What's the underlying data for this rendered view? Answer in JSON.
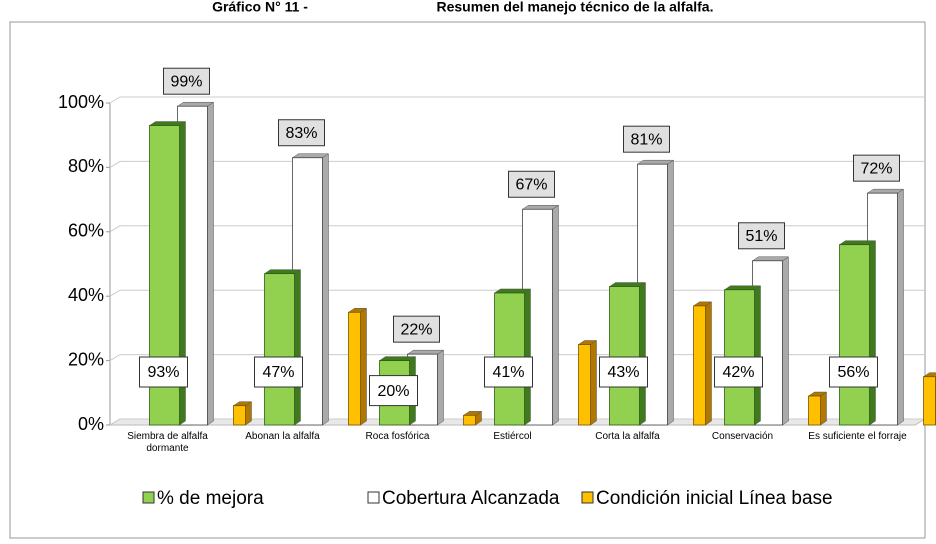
{
  "chart_data": {
    "type": "bar",
    "title": "Gráfico N° 11 -",
    "subtitle": "Resumen del manejo técnico de la alfalfa.",
    "categories": [
      "Siembra de alfalfa dormante",
      "Abonan la alfalfa",
      "Roca fosfórica",
      "Estiércol",
      "Corta la alfalfa",
      "Conservación",
      "Es suficiente el forraje"
    ],
    "series": [
      {
        "name": "% de mejora",
        "color": "#92d050",
        "values": [
          93,
          47,
          20,
          41,
          43,
          42,
          56
        ],
        "value_labels": [
          "93%",
          "47%",
          "20%",
          "41%",
          "43%",
          "42%",
          "56%"
        ]
      },
      {
        "name": "Cobertura Alcanzada",
        "color": "#ffffff",
        "values": [
          99,
          83,
          22,
          67,
          81,
          51,
          72
        ],
        "value_labels": [
          "99%",
          "83%",
          "22%",
          "67%",
          "81%",
          "51%",
          "72%"
        ]
      },
      {
        "name": "Condición inicial Línea base",
        "color": "#ffc000",
        "values": [
          6,
          35,
          3,
          25,
          37,
          9,
          15
        ]
      }
    ],
    "ylim": [
      0,
      100
    ],
    "yticks": [
      {
        "value": 0,
        "label": "0%"
      },
      {
        "value": 20,
        "label": "20%"
      },
      {
        "value": 40,
        "label": "40%"
      },
      {
        "value": 60,
        "label": "60%"
      },
      {
        "value": 80,
        "label": "80%"
      },
      {
        "value": 100,
        "label": "100%"
      }
    ],
    "grid": true,
    "legend": "bottom"
  }
}
